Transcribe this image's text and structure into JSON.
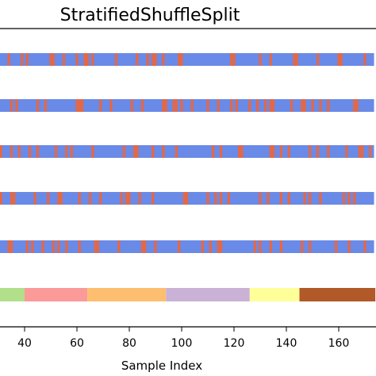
{
  "chart_data": {
    "type": "bar",
    "title": "StratifiedShuffleSplit",
    "xlabel": "Sample Index",
    "ylabel": "",
    "xlim": [
      30,
      173
    ],
    "x_ticks": [
      40,
      60,
      80,
      100,
      120,
      140,
      160
    ],
    "x_tick_labels": [
      "40",
      "60",
      "80",
      "100",
      "120",
      "140",
      "160"
    ],
    "split_colors": {
      "train": "#6a8ae8",
      "test": "#e0694a"
    },
    "splits": [
      {
        "test_indices": [
          30,
          34,
          39,
          41,
          50,
          51,
          55,
          60,
          63,
          64,
          66,
          75,
          83,
          87,
          89,
          90,
          93,
          99,
          100,
          119,
          120,
          130,
          134,
          143,
          144,
          152,
          160,
          161,
          170
        ]
      },
      {
        "test_indices": [
          30,
          35,
          37,
          45,
          48,
          60,
          61,
          62,
          69,
          73,
          81,
          85,
          93,
          94,
          97,
          98,
          100,
          104,
          110,
          114,
          119,
          121,
          126,
          129,
          132,
          134,
          135,
          142,
          146,
          147,
          150,
          153,
          156,
          166,
          167
        ]
      },
      {
        "test_indices": [
          30,
          31,
          35,
          38,
          42,
          45,
          52,
          56,
          58,
          66,
          78,
          82,
          83,
          89,
          93,
          98,
          112,
          115,
          122,
          123,
          134,
          135,
          138,
          141,
          149,
          152,
          156,
          163,
          168,
          169,
          172
        ]
      },
      {
        "test_indices": [
          30,
          31,
          35,
          36,
          44,
          49,
          53,
          54,
          61,
          65,
          69,
          77,
          79,
          80,
          84,
          89,
          101,
          102,
          110,
          113,
          115,
          118,
          130,
          133,
          138,
          141,
          147,
          149,
          153,
          162,
          164,
          166
        ]
      },
      {
        "test_indices": [
          30,
          34,
          35,
          41,
          43,
          47,
          51,
          53,
          56,
          61,
          67,
          68,
          76,
          85,
          86,
          90,
          99,
          108,
          111,
          114,
          115,
          128,
          130,
          134,
          138,
          146,
          149,
          159,
          164,
          170
        ]
      }
    ],
    "class_segments": [
      {
        "start": 30,
        "end": 40,
        "color": "#b2df8a"
      },
      {
        "start": 40,
        "end": 64,
        "color": "#fb9a99"
      },
      {
        "start": 64,
        "end": 94,
        "color": "#fdbf6f"
      },
      {
        "start": 94,
        "end": 126,
        "color": "#cab2d6"
      },
      {
        "start": 126,
        "end": 145,
        "color": "#ffff99"
      },
      {
        "start": 145,
        "end": 174,
        "color": "#b15928"
      }
    ]
  }
}
